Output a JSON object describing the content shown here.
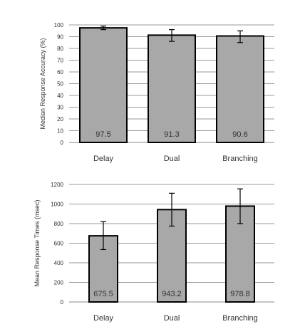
{
  "chart_data": [
    {
      "type": "bar",
      "categories": [
        "Delay",
        "Dual",
        "Branching"
      ],
      "values": [
        97.5,
        91.3,
        90.6
      ],
      "value_labels": [
        "97.5",
        "91.3",
        "90.6"
      ],
      "error_bars": [
        [
          96,
          99
        ],
        [
          86,
          96
        ],
        [
          85,
          95
        ]
      ],
      "xlabel": "",
      "ylabel": "Median Response Accuracy (%)",
      "ylim": [
        0,
        100
      ],
      "yticks": [
        0,
        10,
        20,
        30,
        40,
        50,
        60,
        70,
        80,
        90,
        100
      ],
      "ytick_labels": [
        "0",
        "10",
        "20",
        "30",
        "40",
        "50",
        "60",
        "70",
        "80",
        "90",
        "100"
      ],
      "grid": true,
      "bar_color": "#a8a8a8",
      "bar_edge_color": "#000000"
    },
    {
      "type": "bar",
      "categories": [
        "Delay",
        "Dual",
        "Branching"
      ],
      "values": [
        675.5,
        943.2,
        978.8
      ],
      "value_labels": [
        "675.5",
        "943.2",
        "978.8"
      ],
      "error_bars": [
        [
          535,
          820
        ],
        [
          775,
          1110
        ],
        [
          800,
          1155
        ]
      ],
      "xlabel": "",
      "ylabel": "Mean Response Times (msec)",
      "ylim": [
        0,
        1200
      ],
      "yticks": [
        0,
        200,
        400,
        600,
        800,
        1000,
        1200
      ],
      "ytick_labels": [
        "0",
        "200",
        "400",
        "600",
        "800",
        "1000",
        "1200"
      ],
      "grid": true,
      "bar_color": "#a8a8a8",
      "bar_edge_color": "#000000"
    }
  ]
}
